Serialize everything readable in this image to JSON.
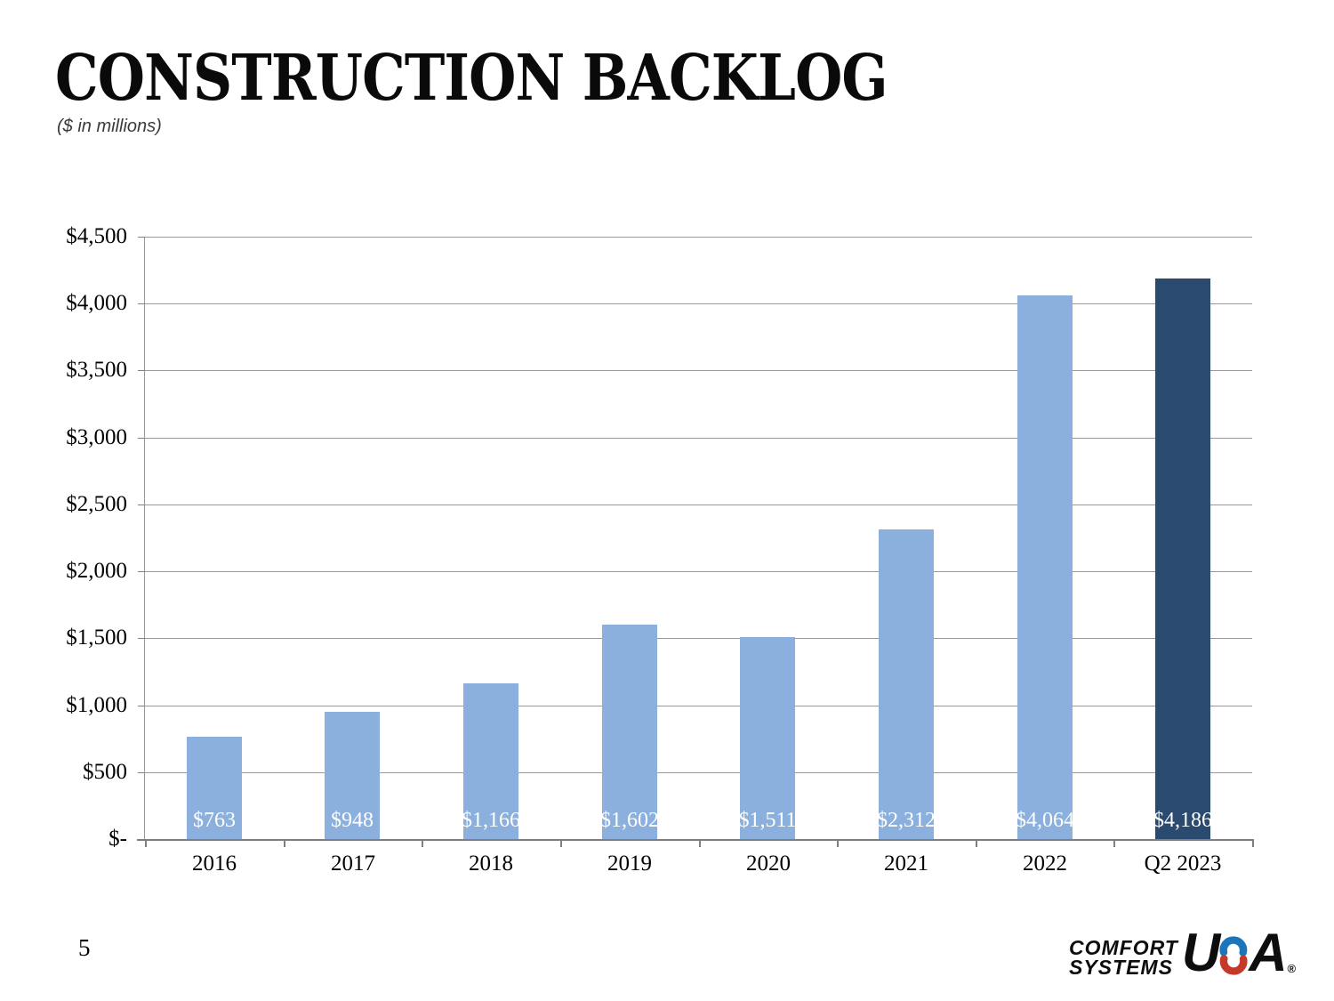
{
  "slide": {
    "title": "CONSTRUCTION BACKLOG",
    "subtitle": "($ in millions)",
    "page_number": "5"
  },
  "chart_data": {
    "type": "bar",
    "title": "CONSTRUCTION BACKLOG",
    "subtitle": "($ in millions)",
    "xlabel": "",
    "ylabel": "",
    "categories": [
      "2016",
      "2017",
      "2018",
      "2019",
      "2020",
      "2021",
      "2022",
      "Q2 2023"
    ],
    "values": [
      763,
      948,
      1166,
      1602,
      1511,
      2312,
      4064,
      4186
    ],
    "bar_labels": [
      "$763",
      "$948",
      "$1,166",
      "$1,602",
      "$1,511",
      "$2,312",
      "$4,064",
      "$4,186"
    ],
    "y_ticks": [
      "$-",
      "$500",
      "$1,000",
      "$1,500",
      "$2,000",
      "$2,500",
      "$3,000",
      "$3,500",
      "$4,000",
      "$4,500"
    ],
    "ylim": [
      0,
      4500
    ],
    "y_step": 500,
    "grid": true,
    "legend": "none",
    "bar_color": "#8CB0DE",
    "highlight_color": "#2A4A70",
    "highlight_index": 7,
    "label_color": "#FFFFFF",
    "grid_color": "#999999",
    "axis_color": "#7F7F7F"
  },
  "logo": {
    "line1": "COMFORT",
    "line2": "SYSTEMS",
    "usa_u": "U",
    "usa_a": "A",
    "registered": "®",
    "blue": "#1B75BB",
    "red": "#C5392B"
  }
}
